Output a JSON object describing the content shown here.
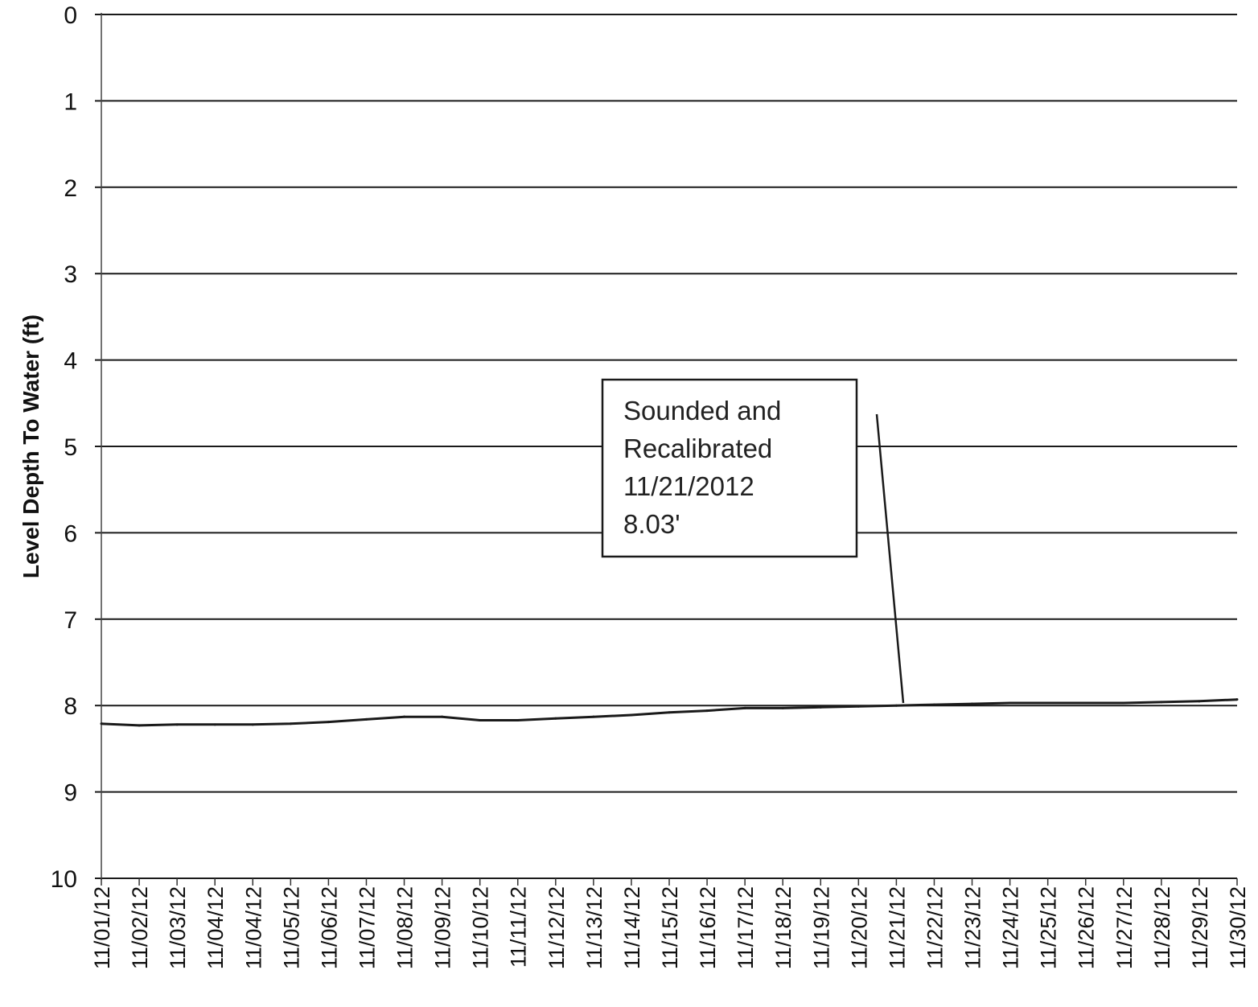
{
  "chart_data": {
    "type": "line",
    "title": "",
    "xlabel": "",
    "ylabel": "Level Depth To Water (ft)",
    "ylim": [
      0,
      10
    ],
    "y_inverted": true,
    "y_ticks": [
      "0",
      "1",
      "2",
      "3",
      "4",
      "5",
      "6",
      "7",
      "8",
      "9",
      "10"
    ],
    "x_tick_labels": [
      "11/01/12",
      "11/02/12",
      "11/03/12",
      "11/04/12",
      "11/04/12",
      "11/05/12",
      "11/06/12",
      "11/07/12",
      "11/08/12",
      "11/09/12",
      "11/10/12",
      "11/11/12",
      "11/12/12",
      "11/13/12",
      "11/14/12",
      "11/15/12",
      "11/16/12",
      "11/17/12",
      "11/18/12",
      "11/19/12",
      "11/20/12",
      "11/21/12",
      "11/22/12",
      "11/23/12",
      "11/24/12",
      "11/25/12",
      "11/26/12",
      "11/27/12",
      "11/28/12",
      "11/29/12",
      "11/30/12"
    ],
    "grid": true,
    "legend": "none",
    "series": [
      {
        "x": [
          "11/01/12",
          "11/02/12",
          "11/03/12",
          "11/04/12",
          "11/04/12",
          "11/05/12",
          "11/06/12",
          "11/07/12",
          "11/08/12",
          "11/09/12",
          "11/10/12",
          "11/11/12",
          "11/12/12",
          "11/13/12",
          "11/14/12",
          "11/15/12",
          "11/16/12",
          "11/17/12",
          "11/18/12",
          "11/19/12",
          "11/20/12",
          "11/21/12",
          "11/22/12",
          "11/23/12",
          "11/24/12",
          "11/25/12",
          "11/26/12",
          "11/27/12",
          "11/28/12",
          "11/29/12",
          "11/30/12"
        ],
        "values": [
          8.21,
          8.23,
          8.22,
          8.22,
          8.22,
          8.21,
          8.19,
          8.16,
          8.13,
          8.13,
          8.17,
          8.17,
          8.15,
          8.13,
          8.11,
          8.08,
          8.06,
          8.03,
          8.03,
          8.02,
          8.01,
          8.0,
          7.99,
          7.98,
          7.97,
          7.97,
          7.97,
          7.97,
          7.96,
          7.95,
          7.93
        ]
      }
    ],
    "annotation": {
      "lines": [
        "Sounded and",
        "Recalibrated",
        "11/21/2012",
        "8.03'"
      ],
      "points_to": "11/21/12"
    },
    "colors": {
      "line": "#1a1a1a",
      "grid": "#1a1a1a",
      "background": "#ffffff"
    }
  }
}
